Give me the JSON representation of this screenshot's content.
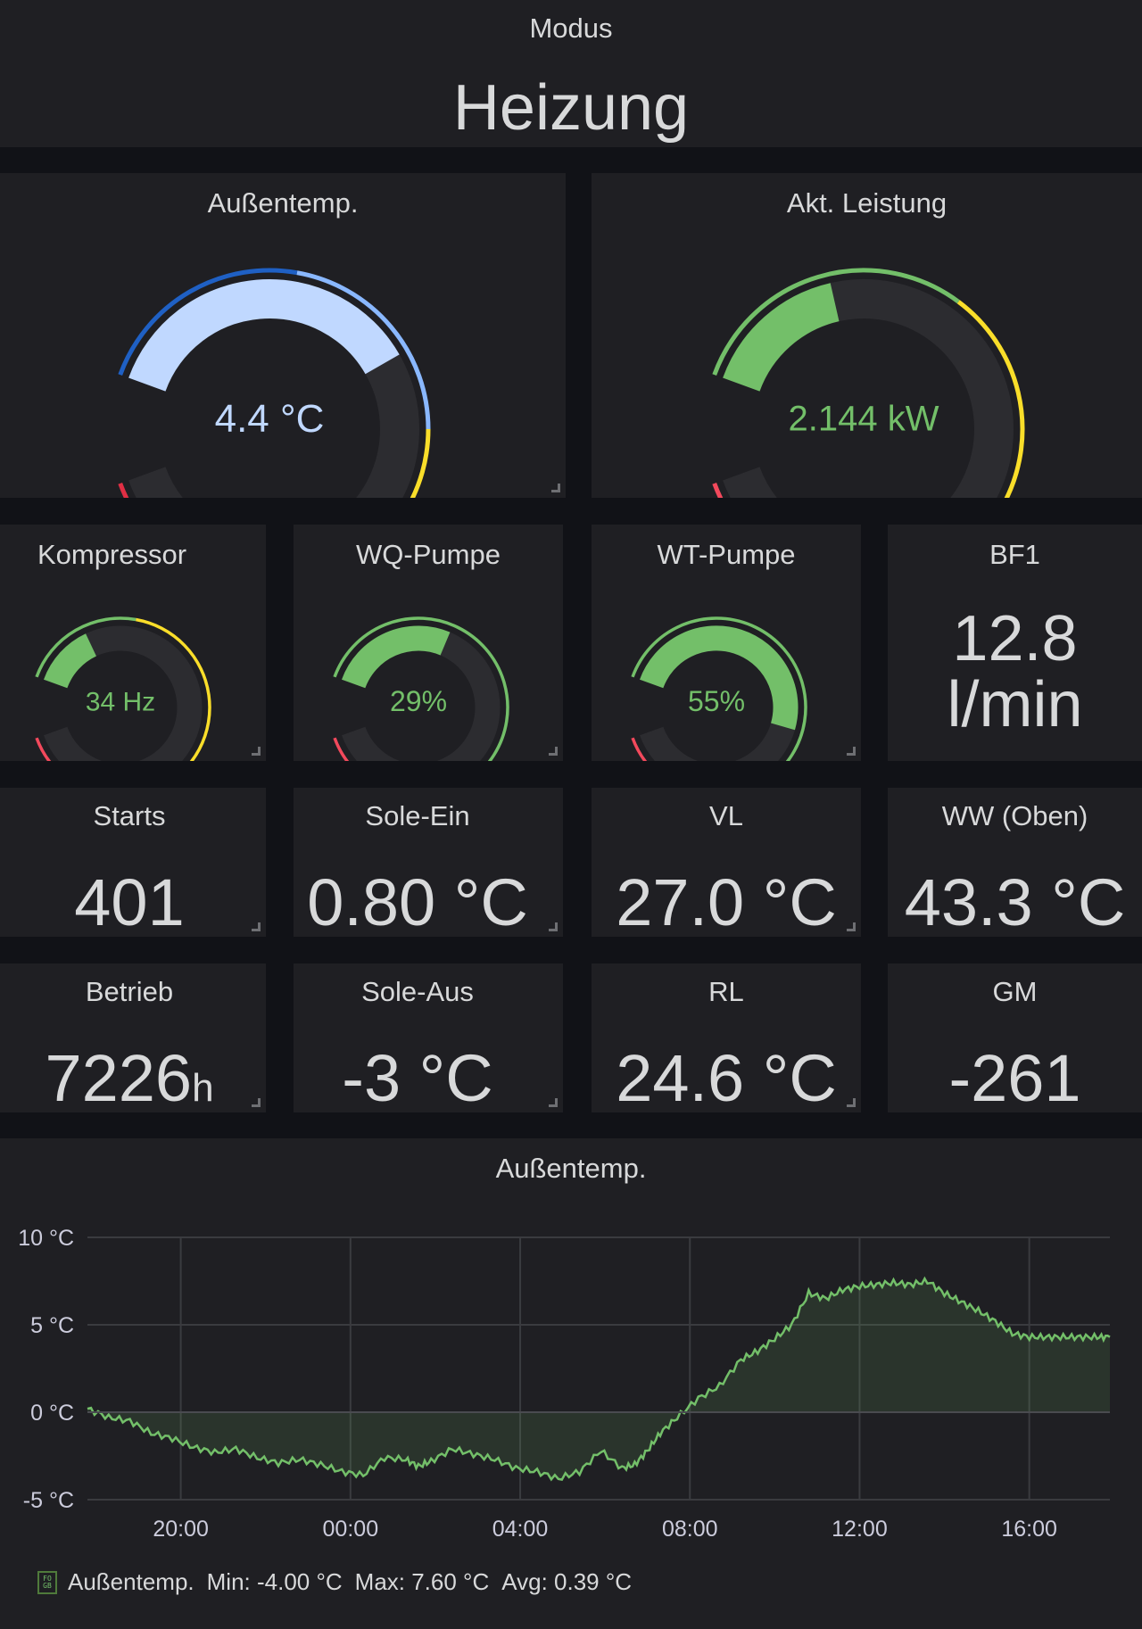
{
  "mode_panel": {
    "title": "Modus",
    "value": "Heizung"
  },
  "gauges": {
    "aussentemp": {
      "title": "Außentemp.",
      "value": 4.4,
      "display": "4.4 °C",
      "min": -20,
      "max": 40,
      "value_color": "#c0d8ff",
      "thresholds": [
        {
          "from": -20,
          "to": -5,
          "color": "#1f60c4"
        },
        {
          "from": -5,
          "to": 10,
          "color": "#8ab8ff"
        },
        {
          "from": 10,
          "to": 22,
          "color": "#fade2a"
        },
        {
          "from": 22,
          "to": 32,
          "color": "#ff9830"
        },
        {
          "from": 32,
          "to": 40,
          "color": "#e02f44"
        }
      ]
    },
    "leistung": {
      "title": "Akt. Leistung",
      "value": 2.144,
      "display": "2.144 kW",
      "min": 0,
      "max": 12,
      "value_color": "#73bf69",
      "thresholds": [
        {
          "from": 0,
          "to": 4,
          "color": "#73bf69"
        },
        {
          "from": 4,
          "to": 10,
          "color": "#fade2a"
        },
        {
          "from": 10,
          "to": 12,
          "color": "#f2495c"
        }
      ]
    },
    "kompressor": {
      "title": "Kompressor",
      "value": 34,
      "display": "34 Hz",
      "min": 20,
      "max": 120,
      "value_color": "#73bf69",
      "thresholds": [
        {
          "from": 20,
          "to": 45,
          "color": "#73bf69"
        },
        {
          "from": 45,
          "to": 90,
          "color": "#fade2a"
        },
        {
          "from": 90,
          "to": 120,
          "color": "#f2495c"
        }
      ]
    },
    "wq_pumpe": {
      "title": "WQ-Pumpe",
      "value": 29,
      "display": "29%",
      "min": 0,
      "max": 100,
      "value_color": "#73bf69",
      "thresholds": [
        {
          "from": 0,
          "to": 90,
          "color": "#73bf69"
        },
        {
          "from": 90,
          "to": 100,
          "color": "#f2495c"
        }
      ]
    },
    "wt_pumpe": {
      "title": "WT-Pumpe",
      "value": 55,
      "display": "55%",
      "min": 0,
      "max": 100,
      "value_color": "#73bf69",
      "thresholds": [
        {
          "from": 0,
          "to": 90,
          "color": "#73bf69"
        },
        {
          "from": 90,
          "to": 100,
          "color": "#f2495c"
        }
      ]
    }
  },
  "bf1": {
    "title": "BF1",
    "value": "12.8",
    "unit": "l/min"
  },
  "stats": {
    "starts": {
      "title": "Starts",
      "value": "401"
    },
    "sole_ein": {
      "title": "Sole-Ein",
      "value": "0.80 °C"
    },
    "vl": {
      "title": "VL",
      "value": "27.0 °C"
    },
    "ww_oben": {
      "title": "WW (Oben)",
      "value": "43.3 °C"
    },
    "betrieb": {
      "title": "Betrieb",
      "value": "7226",
      "unit": "h"
    },
    "sole_aus": {
      "title": "Sole-Aus",
      "value": "-3 °C"
    },
    "rl": {
      "title": "RL",
      "value": "24.6 °C"
    },
    "gm": {
      "title": "GM",
      "value": "-261"
    }
  },
  "chart_panel": {
    "title": "Außentemp."
  },
  "chart_data": {
    "type": "area",
    "title": "Außentemp.",
    "xlabel": "",
    "ylabel": "",
    "ylim": [
      -5,
      10
    ],
    "xlim": [
      17.8,
      41.9
    ],
    "y_ticks": [
      "-5 °C",
      "0 °C",
      "5 °C",
      "10 °C"
    ],
    "x_ticks": [
      "20:00",
      "00:00",
      "04:00",
      "08:00",
      "12:00",
      "16:00"
    ],
    "grid": true,
    "series": [
      {
        "name": "Außentemp.",
        "color": "#73bf69",
        "x": [
          17.8,
          18.3,
          18.8,
          19.3,
          19.8,
          20.3,
          20.8,
          21.3,
          21.8,
          22.3,
          22.8,
          23.3,
          23.8,
          24.3,
          24.8,
          25.3,
          25.6,
          25.9,
          26.4,
          26.9,
          27.4,
          27.9,
          28.4,
          28.9,
          29.4,
          29.9,
          30.4,
          30.7,
          31.0,
          31.3,
          31.7,
          32.2,
          32.7,
          33.2,
          33.6,
          34.0,
          34.4,
          34.8,
          35.2,
          35.6,
          36.0,
          36.4,
          36.8,
          37.2,
          37.6,
          38.0,
          38.4,
          38.8,
          39.2,
          39.6,
          40.0,
          40.4,
          40.8,
          41.2,
          41.6,
          41.9
        ],
        "y": [
          0.2,
          -0.3,
          -0.5,
          -1.2,
          -1.5,
          -2.0,
          -2.3,
          -2.1,
          -2.6,
          -2.9,
          -2.7,
          -3.0,
          -3.4,
          -3.6,
          -2.6,
          -2.7,
          -3.1,
          -2.8,
          -2.1,
          -2.4,
          -2.7,
          -3.2,
          -3.4,
          -3.8,
          -3.4,
          -2.2,
          -3.2,
          -3.0,
          -2.2,
          -1.2,
          -0.3,
          0.8,
          1.5,
          3.0,
          3.5,
          4.2,
          5.0,
          6.8,
          6.5,
          7.0,
          7.2,
          7.3,
          7.4,
          7.3,
          7.5,
          6.8,
          6.3,
          5.8,
          5.2,
          4.5,
          4.3,
          4.3,
          4.3,
          4.3,
          4.3,
          4.3
        ]
      }
    ],
    "legend": {
      "label": "Außentemp.",
      "min": "Min: -4.00 °C",
      "max": "Max: 7.60 °C",
      "avg": "Avg: 0.39 °C",
      "icon": "graph-legend-icon",
      "icon_text": "FO\nGB"
    }
  }
}
